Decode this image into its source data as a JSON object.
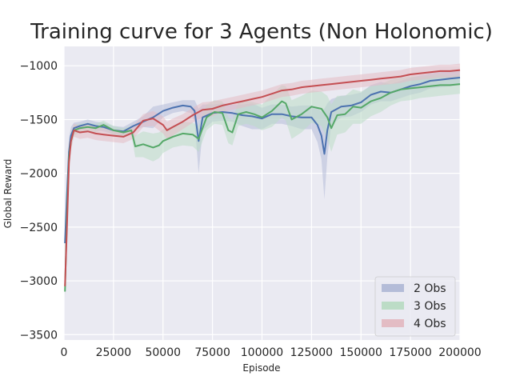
{
  "chart_data": {
    "type": "line",
    "title": "Training curve for 3 Agents (Non Holonomic)",
    "xlabel": "Episode",
    "ylabel": "Global Reward",
    "xlim": [
      0,
      200000
    ],
    "ylim": [
      -3550,
      -820
    ],
    "xticks": [
      0,
      25000,
      50000,
      75000,
      100000,
      125000,
      150000,
      175000,
      200000
    ],
    "yticks": [
      -3500,
      -3000,
      -2500,
      -2000,
      -1500,
      -1000
    ],
    "grid": true,
    "legend_position": "lower-right",
    "series": [
      {
        "name": "2 Obs",
        "color": "#4c72b0",
        "band_color": "#b4bcd8",
        "x": [
          500,
          1500,
          2500,
          3500,
          5000,
          8000,
          12000,
          16000,
          20000,
          25000,
          30000,
          35000,
          40000,
          45000,
          50000,
          55000,
          60000,
          64000,
          66000,
          68000,
          70000,
          75000,
          80000,
          85000,
          90000,
          95000,
          100000,
          105000,
          110000,
          115000,
          120000,
          125000,
          128000,
          130000,
          131500,
          133000,
          135000,
          140000,
          145000,
          150000,
          155000,
          160000,
          165000,
          170000,
          175000,
          180000,
          185000,
          190000,
          195000,
          200000
        ],
        "y": [
          -2650,
          -2200,
          -1800,
          -1650,
          -1580,
          -1560,
          -1540,
          -1560,
          -1570,
          -1600,
          -1610,
          -1560,
          -1520,
          -1480,
          -1420,
          -1390,
          -1370,
          -1380,
          -1420,
          -1700,
          -1480,
          -1440,
          -1430,
          -1440,
          -1460,
          -1470,
          -1490,
          -1450,
          -1450,
          -1470,
          -1480,
          -1480,
          -1550,
          -1650,
          -1820,
          -1600,
          -1430,
          -1380,
          -1370,
          -1340,
          -1270,
          -1240,
          -1250,
          -1220,
          -1190,
          -1170,
          -1140,
          -1130,
          -1120,
          -1110
        ],
        "band": [
          40,
          120,
          120,
          80,
          50,
          40,
          40,
          40,
          40,
          40,
          40,
          40,
          50,
          100,
          60,
          50,
          50,
          60,
          100,
          300,
          120,
          80,
          80,
          80,
          100,
          120,
          100,
          90,
          90,
          90,
          110,
          110,
          160,
          220,
          420,
          250,
          120,
          100,
          100,
          90,
          90,
          90,
          80,
          80,
          80,
          80,
          70,
          70,
          70,
          70
        ]
      },
      {
        "name": "3 Obs",
        "color": "#55a868",
        "band_color": "#bcdcc6",
        "x": [
          500,
          1500,
          2500,
          3500,
          5000,
          8000,
          12000,
          16000,
          20000,
          25000,
          30000,
          34000,
          36000,
          40000,
          45000,
          48000,
          50000,
          55000,
          60000,
          65000,
          68000,
          72000,
          76000,
          80000,
          83000,
          85000,
          88000,
          92000,
          96000,
          100000,
          105000,
          110000,
          112000,
          115000,
          120000,
          125000,
          130000,
          133000,
          135000,
          138000,
          142000,
          146000,
          150000,
          155000,
          160000,
          165000,
          170000,
          175000,
          180000,
          185000,
          190000,
          195000,
          200000
        ],
        "y": [
          -3100,
          -2400,
          -1850,
          -1700,
          -1600,
          -1580,
          -1570,
          -1580,
          -1550,
          -1600,
          -1620,
          -1600,
          -1750,
          -1730,
          -1760,
          -1740,
          -1700,
          -1660,
          -1630,
          -1640,
          -1680,
          -1480,
          -1430,
          -1440,
          -1600,
          -1620,
          -1450,
          -1430,
          -1450,
          -1480,
          -1420,
          -1330,
          -1350,
          -1500,
          -1450,
          -1380,
          -1400,
          -1480,
          -1580,
          -1460,
          -1450,
          -1380,
          -1390,
          -1330,
          -1300,
          -1250,
          -1220,
          -1210,
          -1200,
          -1190,
          -1180,
          -1180,
          -1170
        ],
        "band": [
          60,
          150,
          120,
          80,
          50,
          40,
          40,
          40,
          40,
          40,
          40,
          40,
          100,
          120,
          130,
          120,
          110,
          100,
          110,
          110,
          120,
          120,
          110,
          110,
          120,
          120,
          110,
          110,
          110,
          120,
          150,
          150,
          160,
          180,
          170,
          150,
          160,
          200,
          220,
          180,
          170,
          160,
          150,
          140,
          130,
          120,
          110,
          110,
          100,
          100,
          100,
          90,
          90
        ]
      },
      {
        "name": "4 Obs",
        "color": "#c44e52",
        "band_color": "#e3bcc4",
        "x": [
          500,
          1500,
          2500,
          3500,
          5000,
          8000,
          12000,
          16000,
          20000,
          25000,
          30000,
          35000,
          40000,
          45000,
          50000,
          52000,
          55000,
          60000,
          65000,
          70000,
          75000,
          80000,
          85000,
          90000,
          95000,
          100000,
          105000,
          110000,
          115000,
          120000,
          125000,
          130000,
          135000,
          140000,
          145000,
          150000,
          155000,
          160000,
          165000,
          170000,
          175000,
          180000,
          185000,
          190000,
          195000,
          200000
        ],
        "y": [
          -3050,
          -2500,
          -1900,
          -1700,
          -1600,
          -1620,
          -1610,
          -1630,
          -1640,
          -1650,
          -1660,
          -1620,
          -1510,
          -1490,
          -1550,
          -1600,
          -1570,
          -1520,
          -1460,
          -1410,
          -1400,
          -1370,
          -1350,
          -1330,
          -1310,
          -1290,
          -1260,
          -1230,
          -1220,
          -1200,
          -1190,
          -1180,
          -1170,
          -1160,
          -1150,
          -1140,
          -1130,
          -1120,
          -1110,
          -1100,
          -1080,
          -1070,
          -1060,
          -1050,
          -1050,
          -1040
        ],
        "band": [
          80,
          150,
          100,
          80,
          60,
          60,
          60,
          60,
          60,
          60,
          60,
          60,
          60,
          70,
          80,
          80,
          80,
          70,
          70,
          70,
          70,
          60,
          60,
          60,
          60,
          60,
          60,
          60,
          60,
          60,
          60,
          60,
          60,
          60,
          60,
          60,
          60,
          60,
          60,
          60,
          60,
          60,
          60,
          60,
          60,
          60
        ]
      }
    ]
  }
}
